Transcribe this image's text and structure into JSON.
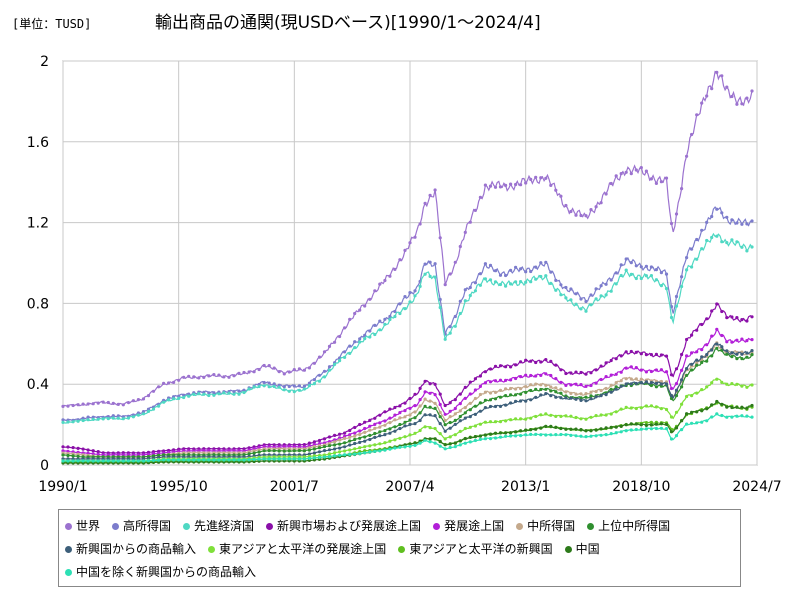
{
  "header": {
    "unit": "[単位：TUSD]",
    "title": "輸出商品の通関(現USDベース)[1990/1～2024/4]"
  },
  "chart_data": {
    "type": "line",
    "x_start": "1990/1",
    "x_end": "2024/7",
    "x_ticks": [
      "1990/1",
      "1995/10",
      "2001/7",
      "2007/4",
      "2013/1",
      "2018/10",
      "2024/7"
    ],
    "y_ticks": [
      "0",
      "0.4",
      "0.8",
      "1.2",
      "1.6",
      "2"
    ],
    "ylim": [
      0,
      2
    ],
    "grid": true,
    "legend_position": "bottom",
    "x": [
      1990.0,
      1991.0,
      1992.0,
      1993.0,
      1994.0,
      1995.0,
      1996.0,
      1997.0,
      1998.0,
      1999.0,
      2000.0,
      2001.0,
      2002.0,
      2003.0,
      2004.0,
      2005.0,
      2006.0,
      2007.0,
      2007.6,
      2008.0,
      2008.5,
      2009.0,
      2009.5,
      2010.0,
      2011.0,
      2012.0,
      2013.0,
      2014.0,
      2015.0,
      2016.0,
      2017.0,
      2018.0,
      2019.0,
      2020.0,
      2020.3,
      2020.6,
      2021.0,
      2022.0,
      2022.5,
      2023.0,
      2024.0,
      2024.3
    ],
    "series": [
      {
        "name": "世界",
        "color": "#9b72cf",
        "values": [
          0.29,
          0.3,
          0.31,
          0.3,
          0.33,
          0.4,
          0.43,
          0.44,
          0.44,
          0.45,
          0.49,
          0.46,
          0.47,
          0.55,
          0.68,
          0.8,
          0.91,
          1.05,
          1.15,
          1.3,
          1.35,
          0.9,
          1.0,
          1.15,
          1.38,
          1.38,
          1.4,
          1.43,
          1.28,
          1.22,
          1.35,
          1.47,
          1.44,
          1.4,
          1.13,
          1.3,
          1.55,
          1.85,
          1.95,
          1.84,
          1.8,
          1.82
        ]
      },
      {
        "name": "高所得国",
        "color": "#7c7ccc",
        "values": [
          0.22,
          0.23,
          0.24,
          0.24,
          0.26,
          0.32,
          0.35,
          0.36,
          0.36,
          0.37,
          0.41,
          0.39,
          0.39,
          0.46,
          0.56,
          0.65,
          0.72,
          0.82,
          0.88,
          1.0,
          0.98,
          0.66,
          0.73,
          0.86,
          0.98,
          0.95,
          0.97,
          0.99,
          0.87,
          0.82,
          0.9,
          1.01,
          0.98,
          0.95,
          0.75,
          0.87,
          1.03,
          1.2,
          1.27,
          1.22,
          1.19,
          1.2
        ]
      },
      {
        "name": "先進経済国",
        "color": "#4fd8c3",
        "values": [
          0.21,
          0.22,
          0.23,
          0.23,
          0.25,
          0.31,
          0.34,
          0.35,
          0.35,
          0.36,
          0.4,
          0.37,
          0.37,
          0.44,
          0.54,
          0.62,
          0.69,
          0.78,
          0.84,
          0.95,
          0.93,
          0.62,
          0.69,
          0.81,
          0.92,
          0.89,
          0.91,
          0.93,
          0.82,
          0.77,
          0.85,
          0.95,
          0.93,
          0.89,
          0.7,
          0.81,
          0.97,
          1.09,
          1.15,
          1.1,
          1.08,
          1.09
        ]
      },
      {
        "name": "新興市場および発展途上国",
        "color": "#8a0fa8",
        "values": [
          0.09,
          0.08,
          0.06,
          0.06,
          0.06,
          0.07,
          0.08,
          0.08,
          0.08,
          0.08,
          0.1,
          0.1,
          0.1,
          0.13,
          0.16,
          0.21,
          0.26,
          0.31,
          0.35,
          0.42,
          0.4,
          0.29,
          0.33,
          0.38,
          0.47,
          0.49,
          0.51,
          0.52,
          0.46,
          0.45,
          0.5,
          0.56,
          0.55,
          0.54,
          0.43,
          0.5,
          0.62,
          0.72,
          0.8,
          0.73,
          0.72,
          0.74
        ]
      },
      {
        "name": "発展途上国",
        "color": "#b21fd8",
        "values": [
          0.07,
          0.06,
          0.05,
          0.05,
          0.05,
          0.06,
          0.07,
          0.07,
          0.07,
          0.07,
          0.09,
          0.09,
          0.09,
          0.11,
          0.14,
          0.18,
          0.22,
          0.27,
          0.3,
          0.36,
          0.35,
          0.25,
          0.28,
          0.33,
          0.41,
          0.42,
          0.44,
          0.45,
          0.4,
          0.39,
          0.43,
          0.48,
          0.47,
          0.46,
          0.37,
          0.43,
          0.53,
          0.6,
          0.66,
          0.62,
          0.61,
          0.63
        ]
      },
      {
        "name": "中所得国",
        "color": "#c4a98c",
        "values": [
          0.06,
          0.05,
          0.04,
          0.04,
          0.04,
          0.05,
          0.06,
          0.06,
          0.06,
          0.06,
          0.08,
          0.08,
          0.08,
          0.1,
          0.13,
          0.16,
          0.2,
          0.24,
          0.27,
          0.32,
          0.31,
          0.22,
          0.25,
          0.29,
          0.36,
          0.37,
          0.39,
          0.4,
          0.36,
          0.35,
          0.38,
          0.43,
          0.42,
          0.41,
          0.33,
          0.38,
          0.47,
          0.54,
          0.6,
          0.56,
          0.55,
          0.56
        ]
      },
      {
        "name": "上位中所得国",
        "color": "#2f8f2f",
        "values": [
          0.05,
          0.04,
          0.04,
          0.04,
          0.04,
          0.05,
          0.05,
          0.05,
          0.05,
          0.05,
          0.07,
          0.07,
          0.07,
          0.09,
          0.11,
          0.14,
          0.17,
          0.21,
          0.24,
          0.29,
          0.28,
          0.2,
          0.22,
          0.26,
          0.32,
          0.34,
          0.36,
          0.38,
          0.34,
          0.33,
          0.36,
          0.4,
          0.4,
          0.39,
          0.31,
          0.36,
          0.45,
          0.52,
          0.58,
          0.54,
          0.53,
          0.54
        ]
      },
      {
        "name": "新興国からの商品輸入",
        "color": "#3d5f7a",
        "values": [
          0.03,
          0.03,
          0.03,
          0.03,
          0.03,
          0.04,
          0.04,
          0.04,
          0.04,
          0.04,
          0.05,
          0.05,
          0.05,
          0.07,
          0.09,
          0.12,
          0.15,
          0.19,
          0.21,
          0.25,
          0.24,
          0.17,
          0.2,
          0.23,
          0.28,
          0.3,
          0.32,
          0.35,
          0.33,
          0.32,
          0.35,
          0.4,
          0.41,
          0.4,
          0.33,
          0.39,
          0.48,
          0.55,
          0.6,
          0.56,
          0.55,
          0.56
        ]
      },
      {
        "name": "東アジアと太平洋の発展途上国",
        "color": "#7fe03a",
        "values": [
          0.02,
          0.02,
          0.02,
          0.02,
          0.02,
          0.03,
          0.03,
          0.03,
          0.03,
          0.03,
          0.04,
          0.04,
          0.04,
          0.05,
          0.07,
          0.09,
          0.11,
          0.14,
          0.16,
          0.19,
          0.18,
          0.13,
          0.15,
          0.18,
          0.21,
          0.22,
          0.23,
          0.25,
          0.24,
          0.23,
          0.25,
          0.28,
          0.29,
          0.28,
          0.23,
          0.27,
          0.34,
          0.38,
          0.43,
          0.4,
          0.39,
          0.4
        ]
      },
      {
        "name": "東アジアと太平洋の新興国",
        "color": "#5fbf1f",
        "values": [
          0.015,
          0.015,
          0.015,
          0.015,
          0.015,
          0.02,
          0.02,
          0.02,
          0.02,
          0.02,
          0.03,
          0.03,
          0.03,
          0.04,
          0.05,
          0.07,
          0.08,
          0.1,
          0.11,
          0.13,
          0.13,
          0.1,
          0.11,
          0.13,
          0.15,
          0.16,
          0.17,
          0.19,
          0.18,
          0.17,
          0.18,
          0.2,
          0.21,
          0.21,
          0.17,
          0.2,
          0.25,
          0.28,
          0.31,
          0.29,
          0.28,
          0.29
        ]
      },
      {
        "name": "中国",
        "color": "#2d7a1a",
        "values": [
          0.01,
          0.01,
          0.01,
          0.01,
          0.01,
          0.015,
          0.015,
          0.015,
          0.015,
          0.015,
          0.02,
          0.02,
          0.02,
          0.03,
          0.045,
          0.06,
          0.075,
          0.1,
          0.11,
          0.13,
          0.13,
          0.1,
          0.11,
          0.13,
          0.15,
          0.16,
          0.17,
          0.19,
          0.18,
          0.17,
          0.18,
          0.2,
          0.2,
          0.2,
          0.16,
          0.2,
          0.25,
          0.28,
          0.31,
          0.29,
          0.28,
          0.3
        ]
      },
      {
        "name": "中国を除く新興国からの商品輸入",
        "color": "#2de0b5",
        "values": [
          0.02,
          0.02,
          0.02,
          0.02,
          0.02,
          0.025,
          0.025,
          0.025,
          0.025,
          0.025,
          0.03,
          0.03,
          0.03,
          0.04,
          0.05,
          0.06,
          0.075,
          0.09,
          0.1,
          0.12,
          0.11,
          0.08,
          0.09,
          0.11,
          0.13,
          0.14,
          0.15,
          0.15,
          0.15,
          0.14,
          0.15,
          0.17,
          0.18,
          0.18,
          0.12,
          0.16,
          0.2,
          0.22,
          0.25,
          0.24,
          0.24,
          0.24
        ]
      }
    ]
  }
}
